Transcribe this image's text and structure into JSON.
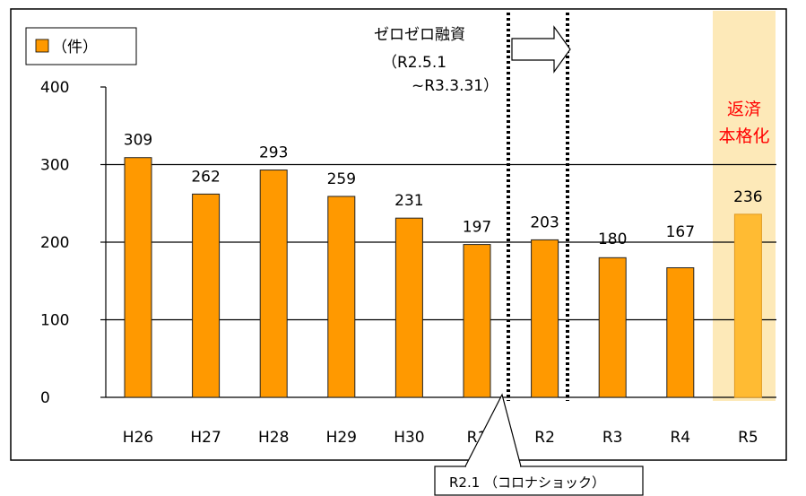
{
  "chart_data": {
    "type": "bar",
    "legend": {
      "label": "（件）",
      "position": "top-left"
    },
    "categories": [
      "H26",
      "H27",
      "H28",
      "H29",
      "H30",
      "R1",
      "R2",
      "R3",
      "R4",
      "R5"
    ],
    "values": [
      309,
      262,
      293,
      259,
      231,
      197,
      203,
      180,
      167,
      236
    ],
    "ylim": [
      0,
      400
    ],
    "yticks": [
      "0",
      "100",
      "200",
      "300",
      "400"
    ],
    "grid": true,
    "colors": {
      "bar": "#ff9900",
      "bar_highlight": "#ffbb33",
      "highlight_band": "#fde9b8",
      "highlight_text": "#ff0000"
    },
    "highlight_category": "R5",
    "annotations": {
      "zero_zero": {
        "title": "ゼロゼロ融資",
        "period_line1": "（R2.5.1",
        "period_line2": "~R3.3.31）"
      },
      "repayment": {
        "line1": "返済",
        "line2": "本格化"
      },
      "corona": "R2.1 （コロナショック）"
    }
  }
}
